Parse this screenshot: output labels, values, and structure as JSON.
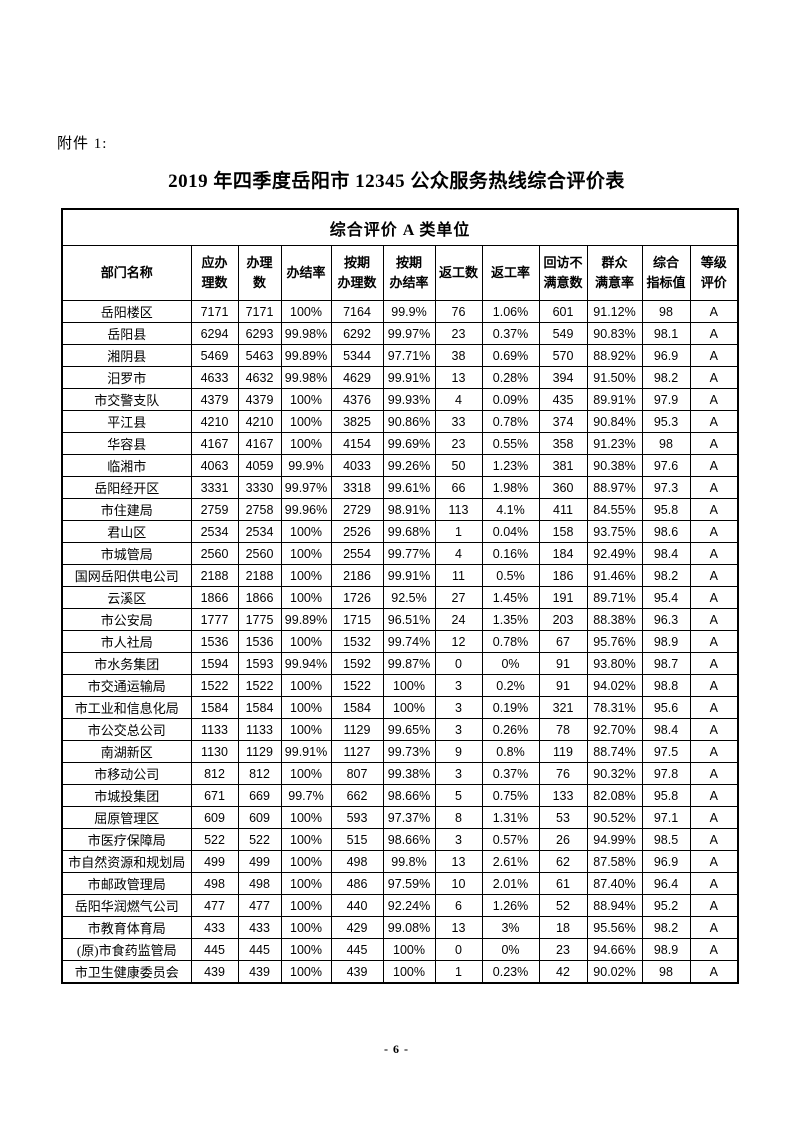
{
  "page": {
    "attachment_label": "附件 1:",
    "title": "2019 年四季度岳阳市 12345 公众服务热线综合评价表",
    "page_number": "- 6 -"
  },
  "table": {
    "band_title": "综合评价 A 类单位",
    "columns": [
      "部门名称",
      "应办\n理数",
      "办理\n数",
      "办结率",
      "按期\n办理数",
      "按期\n办结率",
      "返工数",
      "返工率",
      "回访不\n满意数",
      "群众\n满意率",
      "综合\n指标值",
      "等级\n评价"
    ],
    "rows": [
      [
        "岳阳楼区",
        "7171",
        "7171",
        "100%",
        "7164",
        "99.9%",
        "76",
        "1.06%",
        "601",
        "91.12%",
        "98",
        "A"
      ],
      [
        "岳阳县",
        "6294",
        "6293",
        "99.98%",
        "6292",
        "99.97%",
        "23",
        "0.37%",
        "549",
        "90.83%",
        "98.1",
        "A"
      ],
      [
        "湘阴县",
        "5469",
        "5463",
        "99.89%",
        "5344",
        "97.71%",
        "38",
        "0.69%",
        "570",
        "88.92%",
        "96.9",
        "A"
      ],
      [
        "汨罗市",
        "4633",
        "4632",
        "99.98%",
        "4629",
        "99.91%",
        "13",
        "0.28%",
        "394",
        "91.50%",
        "98.2",
        "A"
      ],
      [
        "市交警支队",
        "4379",
        "4379",
        "100%",
        "4376",
        "99.93%",
        "4",
        "0.09%",
        "435",
        "89.91%",
        "97.9",
        "A"
      ],
      [
        "平江县",
        "4210",
        "4210",
        "100%",
        "3825",
        "90.86%",
        "33",
        "0.78%",
        "374",
        "90.84%",
        "95.3",
        "A"
      ],
      [
        "华容县",
        "4167",
        "4167",
        "100%",
        "4154",
        "99.69%",
        "23",
        "0.55%",
        "358",
        "91.23%",
        "98",
        "A"
      ],
      [
        "临湘市",
        "4063",
        "4059",
        "99.9%",
        "4033",
        "99.26%",
        "50",
        "1.23%",
        "381",
        "90.38%",
        "97.6",
        "A"
      ],
      [
        "岳阳经开区",
        "3331",
        "3330",
        "99.97%",
        "3318",
        "99.61%",
        "66",
        "1.98%",
        "360",
        "88.97%",
        "97.3",
        "A"
      ],
      [
        "市住建局",
        "2759",
        "2758",
        "99.96%",
        "2729",
        "98.91%",
        "113",
        "4.1%",
        "411",
        "84.55%",
        "95.8",
        "A"
      ],
      [
        "君山区",
        "2534",
        "2534",
        "100%",
        "2526",
        "99.68%",
        "1",
        "0.04%",
        "158",
        "93.75%",
        "98.6",
        "A"
      ],
      [
        "市城管局",
        "2560",
        "2560",
        "100%",
        "2554",
        "99.77%",
        "4",
        "0.16%",
        "184",
        "92.49%",
        "98.4",
        "A"
      ],
      [
        "国网岳阳供电公司",
        "2188",
        "2188",
        "100%",
        "2186",
        "99.91%",
        "11",
        "0.5%",
        "186",
        "91.46%",
        "98.2",
        "A"
      ],
      [
        "云溪区",
        "1866",
        "1866",
        "100%",
        "1726",
        "92.5%",
        "27",
        "1.45%",
        "191",
        "89.71%",
        "95.4",
        "A"
      ],
      [
        "市公安局",
        "1777",
        "1775",
        "99.89%",
        "1715",
        "96.51%",
        "24",
        "1.35%",
        "203",
        "88.38%",
        "96.3",
        "A"
      ],
      [
        "市人社局",
        "1536",
        "1536",
        "100%",
        "1532",
        "99.74%",
        "12",
        "0.78%",
        "67",
        "95.76%",
        "98.9",
        "A"
      ],
      [
        "市水务集团",
        "1594",
        "1593",
        "99.94%",
        "1592",
        "99.87%",
        "0",
        "0%",
        "91",
        "93.80%",
        "98.7",
        "A"
      ],
      [
        "市交通运输局",
        "1522",
        "1522",
        "100%",
        "1522",
        "100%",
        "3",
        "0.2%",
        "91",
        "94.02%",
        "98.8",
        "A"
      ],
      [
        "市工业和信息化局",
        "1584",
        "1584",
        "100%",
        "1584",
        "100%",
        "3",
        "0.19%",
        "321",
        "78.31%",
        "95.6",
        "A"
      ],
      [
        "市公交总公司",
        "1133",
        "1133",
        "100%",
        "1129",
        "99.65%",
        "3",
        "0.26%",
        "78",
        "92.70%",
        "98.4",
        "A"
      ],
      [
        "南湖新区",
        "1130",
        "1129",
        "99.91%",
        "1127",
        "99.73%",
        "9",
        "0.8%",
        "119",
        "88.74%",
        "97.5",
        "A"
      ],
      [
        "市移动公司",
        "812",
        "812",
        "100%",
        "807",
        "99.38%",
        "3",
        "0.37%",
        "76",
        "90.32%",
        "97.8",
        "A"
      ],
      [
        "市城投集团",
        "671",
        "669",
        "99.7%",
        "662",
        "98.66%",
        "5",
        "0.75%",
        "133",
        "82.08%",
        "95.8",
        "A"
      ],
      [
        "屈原管理区",
        "609",
        "609",
        "100%",
        "593",
        "97.37%",
        "8",
        "1.31%",
        "53",
        "90.52%",
        "97.1",
        "A"
      ],
      [
        "市医疗保障局",
        "522",
        "522",
        "100%",
        "515",
        "98.66%",
        "3",
        "0.57%",
        "26",
        "94.99%",
        "98.5",
        "A"
      ],
      [
        "市自然资源和规划局",
        "499",
        "499",
        "100%",
        "498",
        "99.8%",
        "13",
        "2.61%",
        "62",
        "87.58%",
        "96.9",
        "A"
      ],
      [
        "市邮政管理局",
        "498",
        "498",
        "100%",
        "486",
        "97.59%",
        "10",
        "2.01%",
        "61",
        "87.40%",
        "96.4",
        "A"
      ],
      [
        "岳阳华润燃气公司",
        "477",
        "477",
        "100%",
        "440",
        "92.24%",
        "6",
        "1.26%",
        "52",
        "88.94%",
        "95.2",
        "A"
      ],
      [
        "市教育体育局",
        "433",
        "433",
        "100%",
        "429",
        "99.08%",
        "13",
        "3%",
        "18",
        "95.56%",
        "98.2",
        "A"
      ],
      [
        "(原)市食药监管局",
        "445",
        "445",
        "100%",
        "445",
        "100%",
        "0",
        "0%",
        "23",
        "94.66%",
        "98.9",
        "A"
      ],
      [
        "市卫生健康委员会",
        "439",
        "439",
        "100%",
        "439",
        "100%",
        "1",
        "0.23%",
        "42",
        "90.02%",
        "98",
        "A"
      ]
    ]
  }
}
